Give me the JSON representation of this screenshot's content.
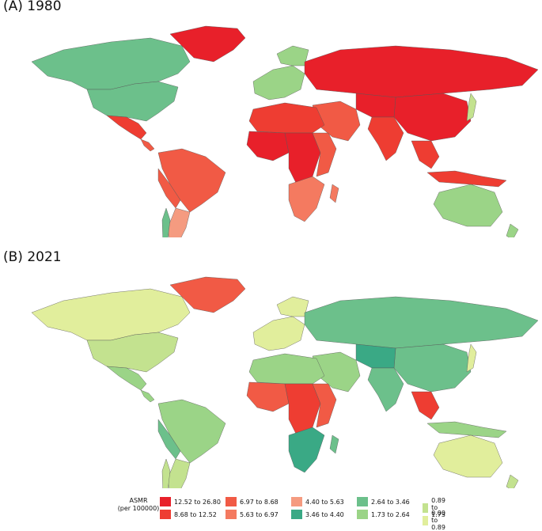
{
  "panels": [
    {
      "title": "(A) 1980"
    },
    {
      "title": "(B) 2021"
    }
  ],
  "legend": {
    "title_line1": "ASMR",
    "title_line2": "(per 100000)",
    "items": [
      {
        "label": "12.52 to 26.80",
        "color": "#e8202a"
      },
      {
        "label": "8.68 to 12.52",
        "color": "#ee3d32"
      },
      {
        "label": "6.97 to 8.68",
        "color": "#f15a45"
      },
      {
        "label": "5.63 to 6.97",
        "color": "#f47a60"
      },
      {
        "label": "4.40 to 5.63",
        "color": "#f59b80"
      },
      {
        "label": "3.46 to 4.40",
        "color": "#3aa985"
      },
      {
        "label": "2.64 to 3.46",
        "color": "#6cc08b"
      },
      {
        "label": "1.73 to 2.64",
        "color": "#9bd487"
      },
      {
        "label": "0.89 to 1.73",
        "color": "#c3e28f"
      },
      {
        "label": "0.00 to 0.89",
        "color": "#e1ee9c"
      }
    ]
  }
}
